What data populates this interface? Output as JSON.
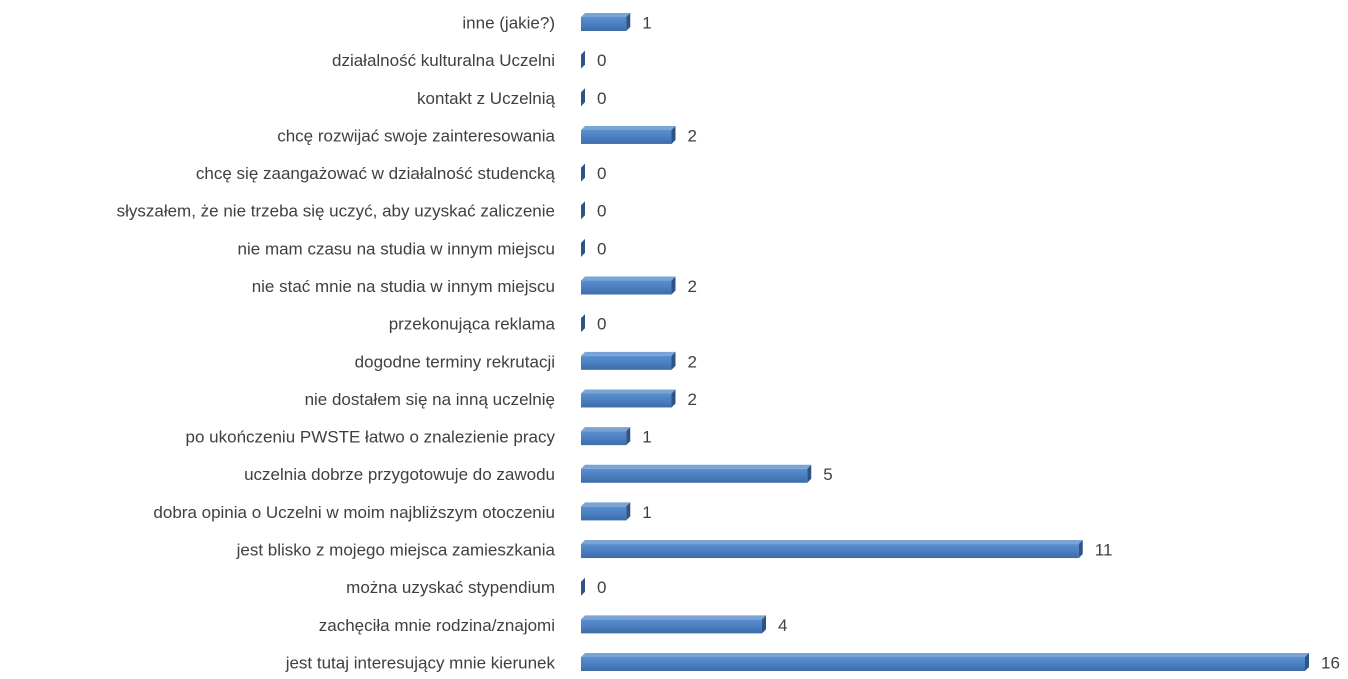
{
  "chart_data": {
    "type": "bar",
    "orientation": "horizontal",
    "color": "#4f81bd",
    "categories": [
      "inne (jakie?)",
      "działalność kulturalna Uczelni",
      "kontakt z Uczelnią",
      "chcę rozwijać swoje zainteresowania",
      "chcę się zaangażować w działalność studencką",
      "słyszałem, że nie trzeba się uczyć, aby uzyskać zaliczenie",
      "nie mam czasu na studia w innym miejscu",
      "nie stać mnie na studia w innym miejscu",
      "przekonująca reklama",
      "dogodne terminy rekrutacji",
      "nie dostałem się na inną uczelnię",
      "po ukończeniu PWSTE łatwo o znalezienie pracy",
      "uczelnia dobrze przygotowuje do zawodu",
      "dobra opinia o Uczelni w moim najbliższym otoczeniu",
      "jest blisko z mojego miejsca zamieszkania",
      "można uzyskać stypendium",
      "zachęciła mnie rodzina/znajomi",
      "jest tutaj interesujący mnie kierunek"
    ],
    "values": [
      1,
      0,
      0,
      2,
      0,
      0,
      0,
      2,
      0,
      2,
      2,
      1,
      5,
      1,
      11,
      0,
      4,
      16
    ]
  }
}
